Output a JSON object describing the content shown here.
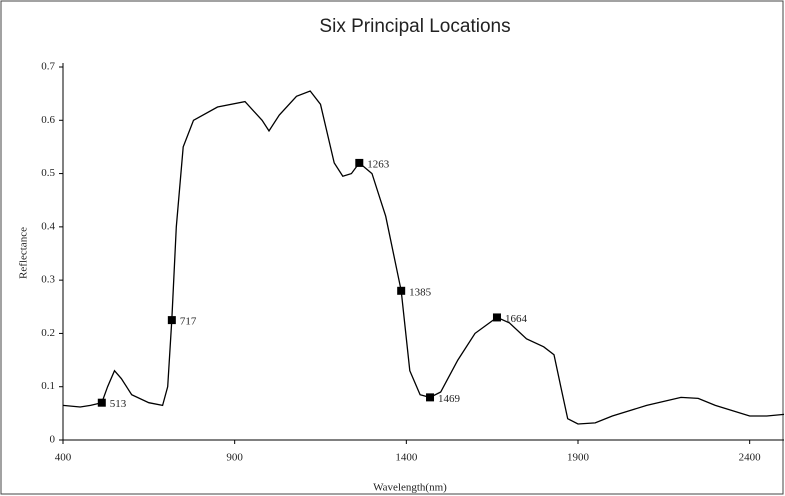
{
  "chart_data": {
    "type": "line",
    "title": "Six Principal Locations",
    "x_label": "Wavelength(nm)",
    "y_label": "Reflectance",
    "xlim": [
      400,
      2500
    ],
    "xticks": [
      400,
      900,
      1400,
      1900,
      2400
    ],
    "ylim": [
      0,
      0.7
    ],
    "yticks": [
      0,
      0.1,
      0.2,
      0.3,
      0.4,
      0.5,
      0.6,
      0.7
    ],
    "series": [
      {
        "color": "#000000",
        "x": [
          400,
          450,
          480,
          513,
          530,
          550,
          570,
          600,
          650,
          690,
          705,
          717,
          730,
          750,
          780,
          850,
          930,
          980,
          1000,
          1030,
          1080,
          1120,
          1150,
          1190,
          1215,
          1240,
          1263,
          1300,
          1340,
          1385,
          1410,
          1440,
          1469,
          1500,
          1550,
          1600,
          1664,
          1700,
          1750,
          1800,
          1830,
          1850,
          1870,
          1900,
          1950,
          2000,
          2100,
          2200,
          2250,
          2300,
          2400,
          2450,
          2500
        ],
        "values": [
          0.065,
          0.062,
          0.065,
          0.07,
          0.1,
          0.13,
          0.115,
          0.085,
          0.07,
          0.065,
          0.1,
          0.225,
          0.4,
          0.55,
          0.6,
          0.625,
          0.635,
          0.6,
          0.58,
          0.61,
          0.645,
          0.655,
          0.63,
          0.52,
          0.495,
          0.5,
          0.52,
          0.5,
          0.42,
          0.28,
          0.13,
          0.085,
          0.08,
          0.09,
          0.15,
          0.2,
          0.23,
          0.22,
          0.19,
          0.175,
          0.16,
          0.1,
          0.04,
          0.03,
          0.032,
          0.045,
          0.065,
          0.08,
          0.078,
          0.065,
          0.045,
          0.045,
          0.048
        ]
      },
      {
        "color": "#000000",
        "marker": "square",
        "x": [
          513,
          717,
          1263,
          1385,
          1469,
          1664
        ],
        "values": [
          0.07,
          0.225,
          0.52,
          0.28,
          0.08,
          0.23
        ]
      }
    ]
  }
}
